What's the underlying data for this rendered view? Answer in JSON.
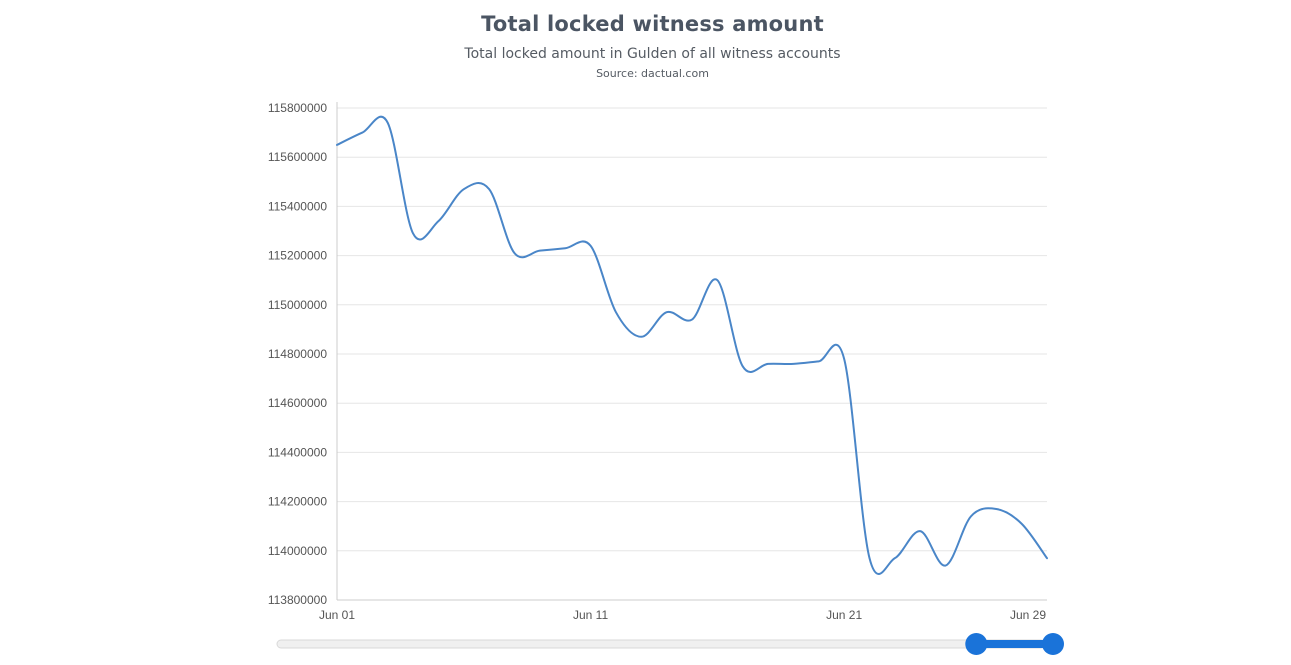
{
  "header": {
    "title": "Total locked witness amount",
    "subtitle": "Total locked amount in Gulden of all witness accounts",
    "source": "Source: dactual.com"
  },
  "colors": {
    "line": "#4a86c8",
    "grid": "#e6e6e6",
    "axis": "#cccccc",
    "slider_track": "#f0f0f0",
    "slider_active": "#1a73d9"
  },
  "chart_data": {
    "type": "line",
    "title": "Total locked witness amount",
    "subtitle": "Total locked amount in Gulden of all witness accounts",
    "xlabel": "",
    "ylabel": "",
    "ylim": [
      113800000,
      115800000
    ],
    "y_ticks": [
      113800000,
      114000000,
      114200000,
      114400000,
      114600000,
      114800000,
      115000000,
      115200000,
      115400000,
      115600000,
      115800000
    ],
    "y_tick_labels": [
      "113800000",
      "114000000",
      "114200000",
      "114400000",
      "114600000",
      "114800000",
      "115000000",
      "115200000",
      "115400000",
      "115600000",
      "115800000"
    ],
    "xlim": [
      "2024-06-01",
      "2024-06-29"
    ],
    "x_ticks": [
      "2024-06-01",
      "2024-06-11",
      "2024-06-21",
      "2024-06-29"
    ],
    "x_tick_labels": [
      "Jun 01",
      "Jun 11",
      "Jun 21",
      "Jun 29"
    ],
    "grid": true,
    "legend": "none",
    "series": [
      {
        "x": [
          "2024-06-01",
          "2024-06-02",
          "2024-06-03",
          "2024-06-04",
          "2024-06-05",
          "2024-06-06",
          "2024-06-07",
          "2024-06-08",
          "2024-06-09",
          "2024-06-10",
          "2024-06-11",
          "2024-06-12",
          "2024-06-13",
          "2024-06-14",
          "2024-06-15",
          "2024-06-16",
          "2024-06-17",
          "2024-06-18",
          "2024-06-19",
          "2024-06-20",
          "2024-06-21",
          "2024-06-22",
          "2024-06-23",
          "2024-06-24",
          "2024-06-25",
          "2024-06-26",
          "2024-06-27",
          "2024-06-28",
          "2024-06-29"
        ],
        "values": [
          115650000,
          115700000,
          115740000,
          115290000,
          115340000,
          115470000,
          115470000,
          115210000,
          115220000,
          115230000,
          115240000,
          114970000,
          114870000,
          114970000,
          114940000,
          115100000,
          114750000,
          114760000,
          114760000,
          114770000,
          114780000,
          113970000,
          113970000,
          114080000,
          113940000,
          114140000,
          114170000,
          114110000,
          113970000
        ]
      }
    ],
    "navigator": {
      "range_start": "2024-06-27",
      "range_end": "2024-06-29"
    }
  }
}
